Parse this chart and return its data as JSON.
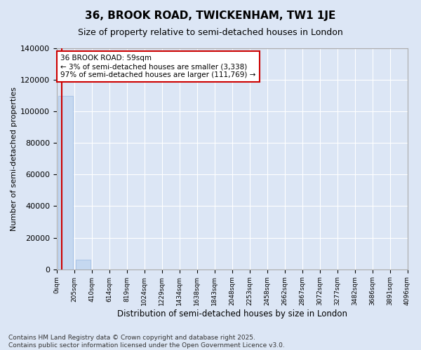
{
  "title": "36, BROOK ROAD, TWICKENHAM, TW1 1JE",
  "subtitle": "Size of property relative to semi-detached houses in London",
  "xlabel": "Distribution of semi-detached houses by size in London",
  "ylabel": "Number of semi-detached properties",
  "property_size": 59,
  "annotation_text": "36 BROOK ROAD: 59sqm\n← 3% of semi-detached houses are smaller (3,338)\n97% of semi-detached houses are larger (111,769) →",
  "bar_color": "#c5d8f0",
  "bar_edge_color": "#adc6e8",
  "vline_color": "#cc0000",
  "annotation_box_edgecolor": "#cc0000",
  "annotation_box_facecolor": "#ffffff",
  "background_color": "#dce6f5",
  "grid_color": "#ffffff",
  "spine_color": "#aaaaaa",
  "footer_text": "Contains HM Land Registry data © Crown copyright and database right 2025.\nContains public sector information licensed under the Open Government Licence v3.0.",
  "bin_edges": [
    0,
    205,
    410,
    614,
    819,
    1024,
    1229,
    1434,
    1638,
    1843,
    2048,
    2253,
    2458,
    2662,
    2867,
    3072,
    3277,
    3482,
    3686,
    3891,
    4096
  ],
  "bin_labels": [
    "0sqm",
    "205sqm",
    "410sqm",
    "614sqm",
    "819sqm",
    "1024sqm",
    "1229sqm",
    "1434sqm",
    "1638sqm",
    "1843sqm",
    "2048sqm",
    "2253sqm",
    "2458sqm",
    "2662sqm",
    "2867sqm",
    "3072sqm",
    "3277sqm",
    "3482sqm",
    "3686sqm",
    "3891sqm",
    "4096sqm"
  ],
  "bar_heights": [
    110000,
    6000,
    0,
    0,
    0,
    0,
    0,
    0,
    0,
    0,
    0,
    0,
    0,
    0,
    0,
    0,
    0,
    0,
    0,
    0
  ],
  "ylim": [
    0,
    140000
  ],
  "yticks": [
    0,
    20000,
    40000,
    60000,
    80000,
    100000,
    120000,
    140000
  ]
}
